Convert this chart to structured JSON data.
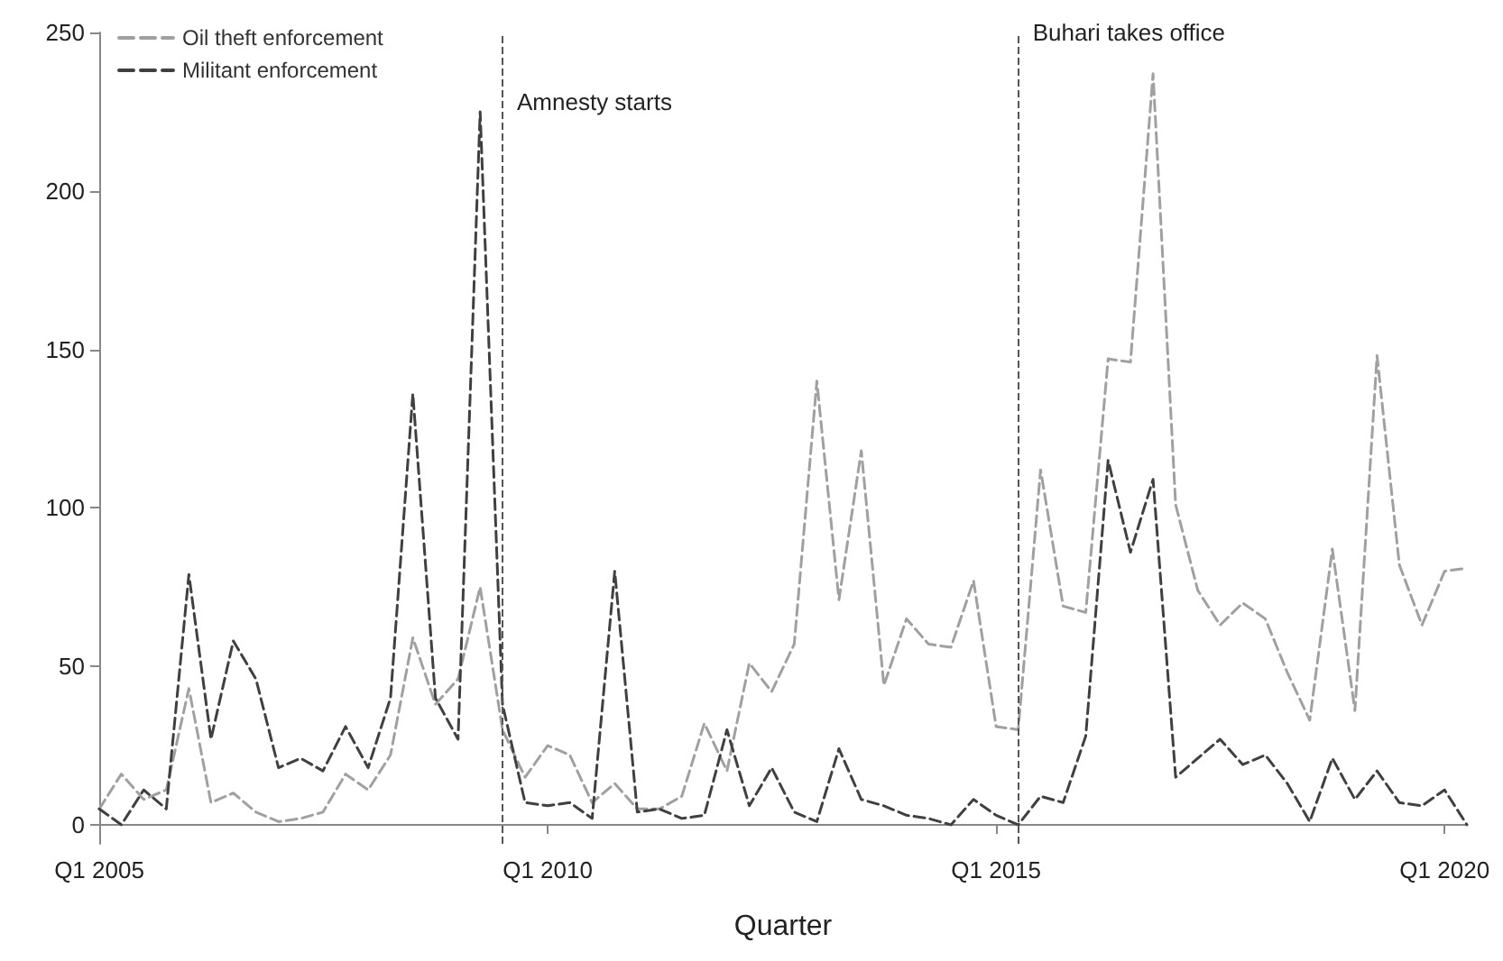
{
  "chart_data": {
    "type": "line",
    "xlabel": "Quarter",
    "x": [
      "2005-01",
      "2005-04",
      "2005-07",
      "2005-10",
      "2006-01",
      "2006-04",
      "2006-07",
      "2006-10",
      "2007-01",
      "2007-04",
      "2007-07",
      "2007-10",
      "2008-01",
      "2008-04",
      "2008-07",
      "2008-10",
      "2009-01",
      "2009-04",
      "2009-07",
      "2009-10",
      "2010-01",
      "2010-04",
      "2010-07",
      "2010-10",
      "2011-01",
      "2011-04",
      "2011-07",
      "2011-10",
      "2012-01",
      "2012-04",
      "2012-07",
      "2012-10",
      "2013-01",
      "2013-04",
      "2013-07",
      "2013-10",
      "2014-01",
      "2014-04",
      "2014-07",
      "2014-10",
      "2015-01",
      "2015-04",
      "2015-07",
      "2015-10",
      "2016-01",
      "2016-04",
      "2016-07",
      "2016-10",
      "2017-01",
      "2017-04",
      "2017-07",
      "2017-10",
      "2018-01",
      "2018-04",
      "2018-07",
      "2018-10",
      "2019-01",
      "2019-04",
      "2019-07",
      "2019-10",
      "2020-01",
      "2020-04"
    ],
    "series": [
      {
        "name": "Oil theft enforcement",
        "color": "#a0a0a0",
        "values": [
          5,
          16,
          8,
          11,
          43,
          7,
          10,
          4,
          1,
          2,
          4,
          16,
          11,
          22,
          59,
          38,
          46,
          75,
          30,
          15,
          25,
          22,
          7,
          13,
          5,
          5,
          9,
          32,
          17,
          51,
          42,
          57,
          140,
          71,
          118,
          44,
          65,
          57,
          56,
          77,
          31,
          30,
          112,
          69,
          67,
          147,
          146,
          237,
          101,
          74,
          63,
          70,
          65,
          48,
          33,
          87,
          36,
          148,
          82,
          63,
          80,
          81
        ]
      },
      {
        "name": "Militant enforcement",
        "color": "#404040",
        "values": [
          5,
          0,
          11,
          5,
          79,
          27,
          58,
          46,
          18,
          21,
          17,
          31,
          18,
          40,
          136,
          40,
          27,
          225,
          38,
          7,
          6,
          7,
          2,
          80,
          4,
          5,
          2,
          3,
          30,
          6,
          18,
          4,
          1,
          24,
          8,
          6,
          3,
          2,
          0,
          8,
          3,
          0,
          9,
          7,
          28,
          115,
          86,
          109,
          15,
          21,
          27,
          19,
          22,
          13,
          1,
          21,
          8,
          17,
          7,
          6,
          11,
          0
        ]
      }
    ],
    "xlim": [
      "2005-01",
      "2020-04"
    ],
    "xticks": [
      {
        "value": "2005-01",
        "label": "Q1 2005"
      },
      {
        "value": "2010-01",
        "label": "Q1 2010"
      },
      {
        "value": "2015-01",
        "label": "Q1 2015"
      },
      {
        "value": "2020-01",
        "label": "Q1 2020"
      }
    ],
    "ylim": [
      -6,
      250
    ],
    "yticks": [
      0,
      50,
      100,
      150,
      200,
      250
    ],
    "ref_lines": [
      {
        "axis": "x",
        "value": "2009-07",
        "color": "#555555",
        "line_style": "dashed"
      },
      {
        "axis": "x",
        "value": "2015-04",
        "color": "#555555",
        "line_style": "dashed"
      }
    ],
    "annotations": [
      {
        "text": "Amnesty starts",
        "x": "2009-07",
        "y": 228
      },
      {
        "text": "Buhari takes office",
        "x": "2015-04",
        "y": 250
      }
    ],
    "grid": false,
    "legend": "top left",
    "marker": "none",
    "line_style": "dashed"
  }
}
